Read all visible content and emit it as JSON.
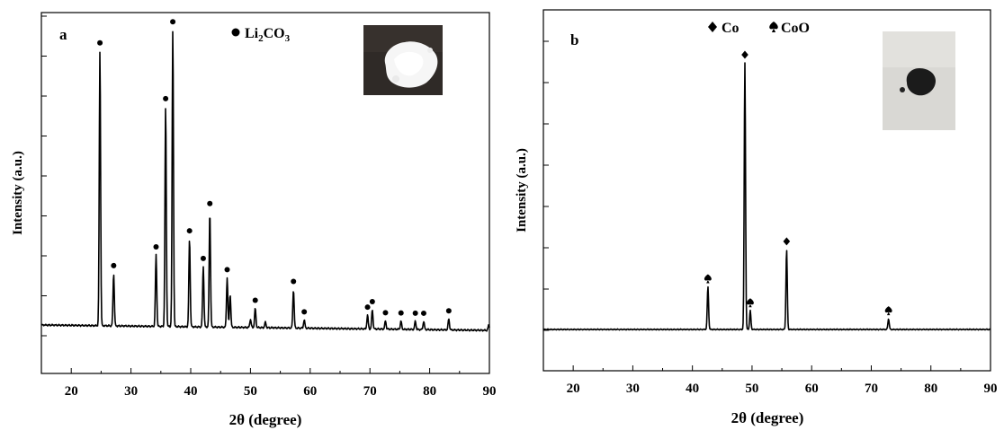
{
  "chart_data": [
    {
      "type": "line",
      "panel_label": "a",
      "xlabel": "2θ (degree)",
      "ylabel": "Intensity (a.u.)",
      "xlim": [
        15,
        90
      ],
      "ylim": [
        -0.1,
        1.05
      ],
      "x_ticks": [
        20,
        30,
        40,
        50,
        60,
        70,
        80,
        90
      ],
      "y_tick_labels": "none",
      "baseline": 0.0,
      "legend": [
        {
          "marker": "circle",
          "label_main": "Li",
          "sub1": "2",
          "label_mid": "CO",
          "sub2": "3"
        }
      ],
      "inset": "photo-white-powder",
      "peaks": [
        {
          "x": 24.8,
          "y": 1.0,
          "marker": "circle"
        },
        {
          "x": 27.1,
          "y": 0.19,
          "marker": "circle"
        },
        {
          "x": 34.2,
          "y": 0.26,
          "marker": "circle"
        },
        {
          "x": 35.8,
          "y": 0.8,
          "marker": "circle"
        },
        {
          "x": 37.0,
          "y": 1.08,
          "marker": "circle"
        },
        {
          "x": 39.8,
          "y": 0.32,
          "marker": "circle"
        },
        {
          "x": 42.1,
          "y": 0.22,
          "marker": "circle"
        },
        {
          "x": 43.2,
          "y": 0.42,
          "marker": "circle"
        },
        {
          "x": 46.1,
          "y": 0.18,
          "marker": "circle"
        },
        {
          "x": 46.6,
          "y": 0.12,
          "marker": null
        },
        {
          "x": 50.0,
          "y": 0.03,
          "marker": null
        },
        {
          "x": 50.8,
          "y": 0.07,
          "marker": "circle"
        },
        {
          "x": 52.5,
          "y": 0.02,
          "marker": null
        },
        {
          "x": 57.2,
          "y": 0.14,
          "marker": "circle"
        },
        {
          "x": 59.0,
          "y": 0.03,
          "marker": "circle"
        },
        {
          "x": 69.6,
          "y": 0.05,
          "marker": "circle"
        },
        {
          "x": 70.4,
          "y": 0.07,
          "marker": "circle"
        },
        {
          "x": 72.6,
          "y": 0.03,
          "marker": "circle"
        },
        {
          "x": 75.2,
          "y": 0.03,
          "marker": "circle"
        },
        {
          "x": 77.6,
          "y": 0.03,
          "marker": "circle"
        },
        {
          "x": 79.0,
          "y": 0.03,
          "marker": "circle"
        },
        {
          "x": 83.2,
          "y": 0.04,
          "marker": "circle"
        },
        {
          "x": 89.9,
          "y": 0.02,
          "marker": null
        }
      ]
    },
    {
      "type": "line",
      "panel_label": "b",
      "xlabel": "2θ (degree)",
      "ylabel": "Intensity (a.u.)",
      "xlim": [
        15,
        90
      ],
      "ylim": [
        -0.17,
        1.2
      ],
      "x_ticks": [
        20,
        30,
        40,
        50,
        60,
        70,
        80,
        90
      ],
      "y_tick_labels": "none",
      "baseline": 0.0,
      "legend": [
        {
          "marker": "diamond",
          "label": "Co"
        },
        {
          "marker": "spade",
          "label": "CoO"
        }
      ],
      "inset": "photo-black-powder",
      "peaks": [
        {
          "x": 42.6,
          "y": 0.16,
          "marker": "spade"
        },
        {
          "x": 48.8,
          "y": 1.0,
          "marker": "diamond"
        },
        {
          "x": 49.7,
          "y": 0.07,
          "marker": "spade"
        },
        {
          "x": 55.8,
          "y": 0.3,
          "marker": "diamond"
        },
        {
          "x": 72.9,
          "y": 0.04,
          "marker": "spade"
        }
      ]
    }
  ]
}
